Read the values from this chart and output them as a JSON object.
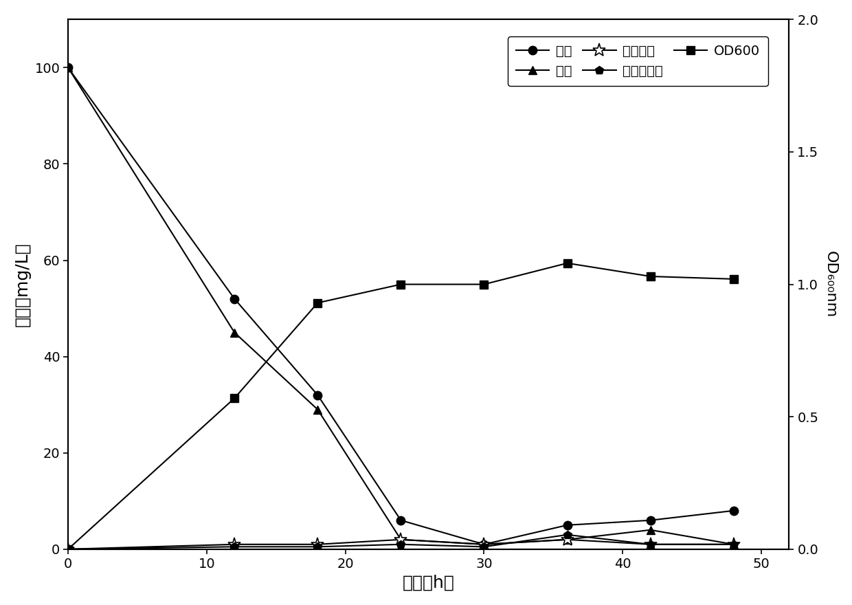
{
  "time": [
    0,
    12,
    18,
    24,
    30,
    36,
    42,
    48
  ],
  "total_N": [
    100,
    52,
    32,
    6,
    1,
    5,
    6,
    8
  ],
  "ammonia_N": [
    100,
    45,
    29,
    2,
    1,
    2,
    4,
    1
  ],
  "nitrate_N": [
    0,
    1,
    1,
    2,
    1,
    2,
    1,
    1
  ],
  "nitrite_N": [
    0,
    0.5,
    0.5,
    1,
    0.5,
    3,
    1,
    1
  ],
  "OD600_time": [
    0,
    12,
    18,
    24,
    30,
    36,
    42,
    48
  ],
  "OD600": [
    0,
    0.57,
    0.93,
    1.0,
    1.0,
    1.08,
    1.03,
    1.02
  ],
  "ylabel_left": "含量（mg/L）",
  "ylabel_right": "OD₆₀₀nm",
  "xlabel": "时段（h）",
  "legend_total_N": "总氮",
  "legend_ammonia_N": "氨氮",
  "legend_nitrate_N": "硭酸盐氮",
  "legend_nitrite_N": "亚硭酸盐氮",
  "legend_OD600": "OD600",
  "xlim": [
    0,
    52
  ],
  "ylim_left": [
    0,
    110
  ],
  "ylim_right": [
    0,
    2.0
  ],
  "xticks": [
    0,
    10,
    20,
    30,
    40,
    50
  ],
  "yticks_left": [
    0,
    20,
    40,
    60,
    80,
    100
  ],
  "yticks_right": [
    0.0,
    0.5,
    1.0,
    1.5,
    2.0
  ],
  "line_color": "#000000",
  "background_color": "#ffffff"
}
